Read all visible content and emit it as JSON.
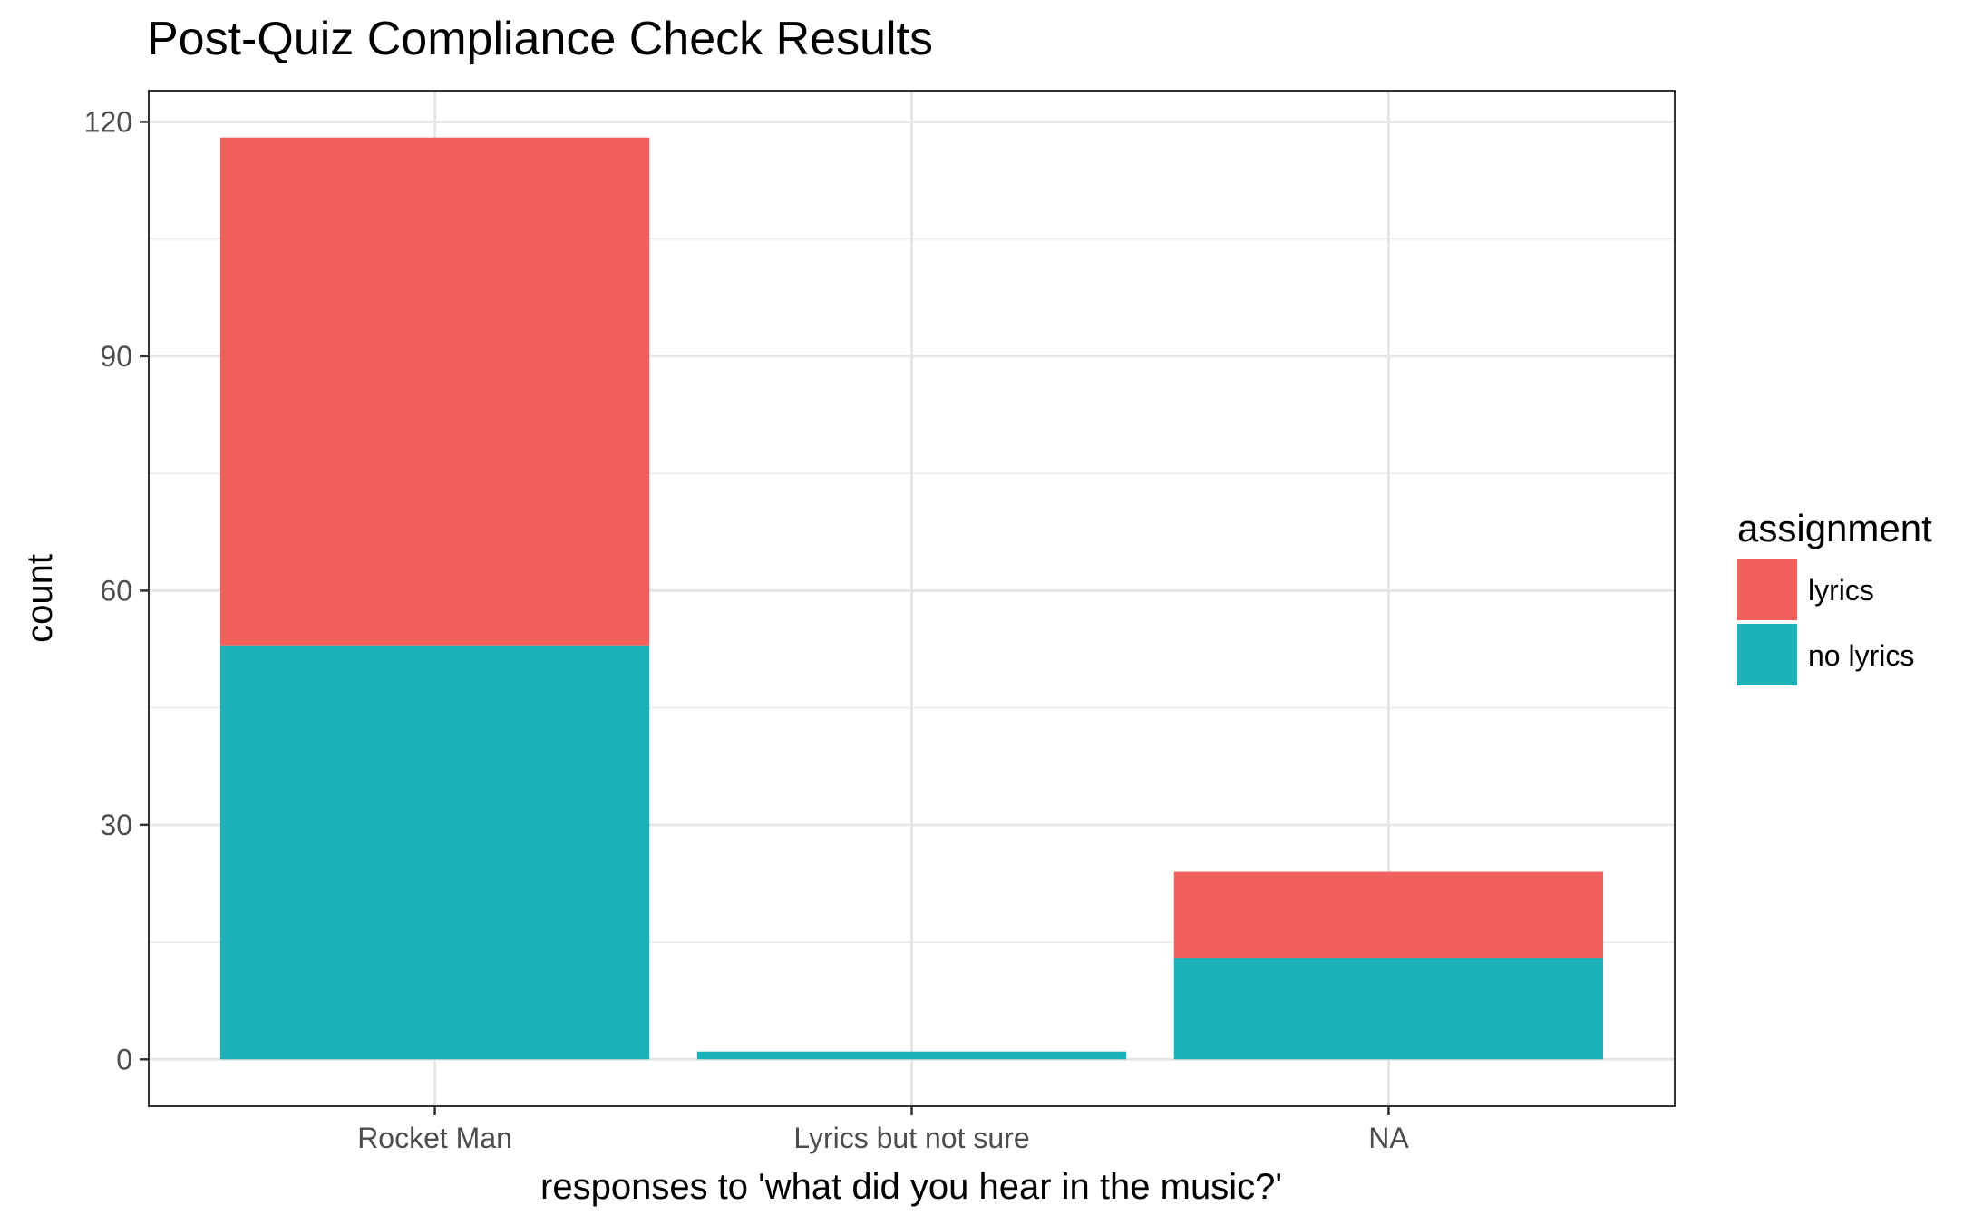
{
  "chart_data": {
    "type": "bar",
    "stacked": true,
    "title": "Post-Quiz Compliance Check Results",
    "xlabel": "responses to 'what did you hear in the music?'",
    "ylabel": "count",
    "categories": [
      "Rocket Man",
      "Lyrics but not sure",
      "NA"
    ],
    "series": [
      {
        "name": "no lyrics",
        "values": [
          53,
          1,
          13
        ],
        "color": "#1bb3b8"
      },
      {
        "name": "lyrics",
        "values": [
          65,
          0,
          11
        ],
        "color": "#f2605c"
      }
    ],
    "ylim": [
      -6,
      124
    ],
    "yticks": [
      0,
      30,
      60,
      90,
      120
    ],
    "grid": true,
    "legend": {
      "title": "assignment",
      "position": "right",
      "entries": [
        {
          "label": "lyrics",
          "color": "#f2605c"
        },
        {
          "label": "no lyrics",
          "color": "#1bb3b8"
        }
      ]
    }
  }
}
